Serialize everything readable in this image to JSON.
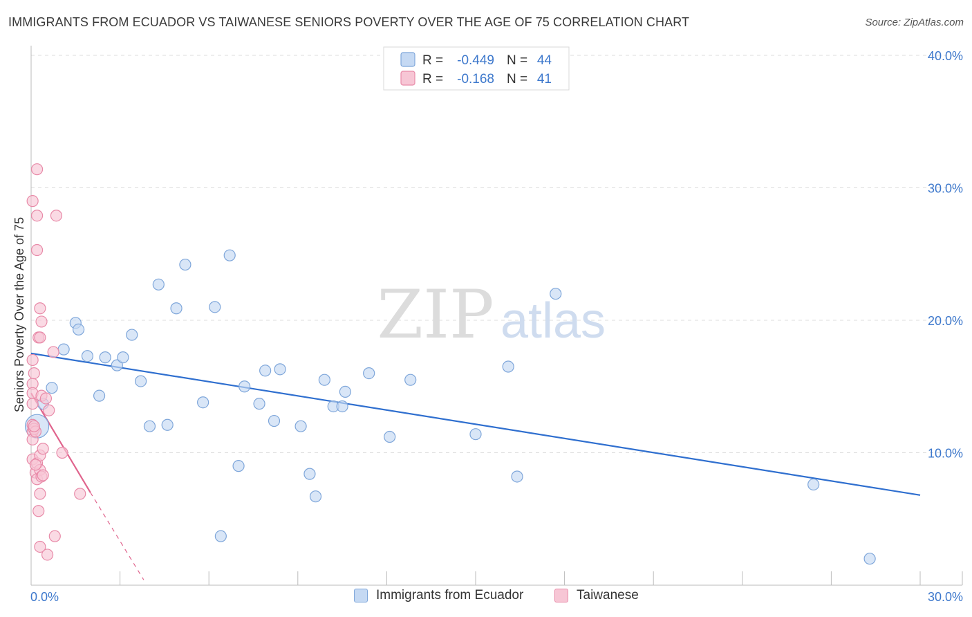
{
  "title": "IMMIGRANTS FROM ECUADOR VS TAIWANESE SENIORS POVERTY OVER THE AGE OF 75 CORRELATION CHART",
  "source": "Source: ZipAtlas.com",
  "watermark": {
    "zip": "ZIP",
    "atlas": "atlas"
  },
  "colors": {
    "blue_fill": "#c5d9f3",
    "blue_stroke": "#7ea6da",
    "blue_line": "#2f6fcf",
    "pink_fill": "#f7c6d5",
    "pink_stroke": "#e88aa8",
    "pink_line": "#e0648d",
    "axis_label": "#3d78cc",
    "grid": "#dddddd"
  },
  "stats_legend": [
    {
      "r_label": "R =",
      "r_value": "-0.449",
      "n_label": "N =",
      "n_value": "44",
      "series": "blue"
    },
    {
      "r_label": "R =",
      "r_value": "-0.168",
      "n_label": "N =",
      "n_value": "41",
      "series": "pink"
    }
  ],
  "chart_data": {
    "type": "scatter",
    "title": "IMMIGRANTS FROM ECUADOR VS TAIWANESE SENIORS POVERTY OVER THE AGE OF 75 CORRELATION CHART",
    "xlabel": "",
    "ylabel": "Seniors Poverty Over the Age of 75",
    "xlim": [
      0,
      30
    ],
    "ylim": [
      0,
      40
    ],
    "x_tick_labels": [
      {
        "value": 0,
        "label": "0.0%"
      },
      {
        "value": 30,
        "label": "30.0%"
      }
    ],
    "y_tick_labels": [
      {
        "value": 10,
        "label": "10.0%"
      },
      {
        "value": 20,
        "label": "20.0%"
      },
      {
        "value": 30,
        "label": "30.0%"
      },
      {
        "value": 40,
        "label": "40.0%"
      }
    ],
    "series": [
      {
        "name": "Immigrants from Ecuador",
        "color": "blue",
        "points": [
          [
            0.2,
            12.0,
            "big"
          ],
          [
            0.4,
            13.7
          ],
          [
            0.7,
            14.9
          ],
          [
            1.1,
            17.8
          ],
          [
            1.5,
            19.8
          ],
          [
            1.6,
            19.3
          ],
          [
            1.9,
            17.3
          ],
          [
            2.3,
            14.3
          ],
          [
            2.5,
            17.2
          ],
          [
            2.9,
            16.6
          ],
          [
            3.1,
            17.2
          ],
          [
            3.4,
            18.9
          ],
          [
            3.7,
            15.4
          ],
          [
            4.0,
            12.0
          ],
          [
            4.3,
            22.7
          ],
          [
            4.6,
            12.1
          ],
          [
            4.9,
            20.9
          ],
          [
            5.2,
            24.2
          ],
          [
            5.8,
            13.8
          ],
          [
            6.2,
            21.0
          ],
          [
            6.4,
            3.7
          ],
          [
            6.7,
            24.9
          ],
          [
            7.0,
            9.0
          ],
          [
            7.2,
            15.0
          ],
          [
            7.7,
            13.7
          ],
          [
            7.9,
            16.2
          ],
          [
            8.2,
            12.4
          ],
          [
            8.4,
            16.3
          ],
          [
            9.1,
            12.0
          ],
          [
            9.4,
            8.4
          ],
          [
            9.6,
            6.7
          ],
          [
            9.9,
            15.5
          ],
          [
            10.2,
            13.5
          ],
          [
            10.5,
            13.5
          ],
          [
            10.6,
            14.6
          ],
          [
            11.4,
            16.0
          ],
          [
            12.1,
            11.2
          ],
          [
            12.8,
            15.5
          ],
          [
            15.0,
            11.4
          ],
          [
            16.1,
            16.5
          ],
          [
            16.4,
            8.2
          ],
          [
            17.7,
            22.0
          ],
          [
            26.4,
            7.6
          ],
          [
            28.3,
            2.0
          ]
        ],
        "trend": {
          "x": [
            0,
            30
          ],
          "y": [
            17.5,
            6.8
          ]
        }
      },
      {
        "name": "Taiwanese",
        "color": "pink",
        "points": [
          [
            0.05,
            29.0
          ],
          [
            0.05,
            17.0
          ],
          [
            0.05,
            15.2
          ],
          [
            0.05,
            14.5
          ],
          [
            0.05,
            13.7
          ],
          [
            0.05,
            12.1
          ],
          [
            0.05,
            11.6
          ],
          [
            0.05,
            11.0
          ],
          [
            0.05,
            9.5
          ],
          [
            0.1,
            16.0
          ],
          [
            0.1,
            11.8
          ],
          [
            0.15,
            11.6
          ],
          [
            0.15,
            8.5
          ],
          [
            0.2,
            31.4
          ],
          [
            0.2,
            27.9
          ],
          [
            0.2,
            25.3
          ],
          [
            0.2,
            9.2
          ],
          [
            0.2,
            8.0
          ],
          [
            0.25,
            18.7
          ],
          [
            0.25,
            5.6
          ],
          [
            0.3,
            20.9
          ],
          [
            0.3,
            18.7
          ],
          [
            0.3,
            9.8
          ],
          [
            0.3,
            8.7
          ],
          [
            0.3,
            6.9
          ],
          [
            0.3,
            2.9
          ],
          [
            0.35,
            19.9
          ],
          [
            0.35,
            14.3
          ],
          [
            0.35,
            8.2
          ],
          [
            0.4,
            10.3
          ],
          [
            0.4,
            8.3
          ],
          [
            0.55,
            2.3
          ],
          [
            0.6,
            13.2
          ],
          [
            0.75,
            17.6
          ],
          [
            0.8,
            3.7
          ],
          [
            0.85,
            27.9
          ],
          [
            1.05,
            10.0
          ],
          [
            1.65,
            6.9
          ],
          [
            0.1,
            12.0
          ],
          [
            0.5,
            14.1
          ],
          [
            0.15,
            9.1
          ]
        ],
        "trend": {
          "x": [
            0,
            2.0
          ],
          "y": [
            14.5,
            7.0
          ]
        },
        "trend_extension": {
          "x": [
            2.0,
            3.8
          ],
          "y": [
            7.0,
            0.4
          ]
        }
      }
    ],
    "legend": [
      "Immigrants from Ecuador",
      "Taiwanese"
    ]
  }
}
